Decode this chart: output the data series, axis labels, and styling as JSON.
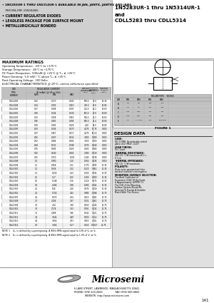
{
  "title_right_line1": "1N5283UR-1 thru 1N5314UR-1",
  "title_right_line2": "and",
  "title_right_line3": "CDLL5283 thru CDLL5314",
  "header_bullets": [
    "1N5283UR-1 THRU 1N5314UR-1 AVAILABLE IN JAN, JANTX, JANTXV AND JANS",
    "  PER MIL-PRF-19500/465",
    "CURRENT REGULATOR DIODES",
    "LEADLESS PACKAGE FOR SURFACE MOUNT",
    "METALLURGICALLY BONDED"
  ],
  "max_ratings_title": "MAXIMUM RATINGS",
  "max_ratings": [
    "Operating Temperature:  -65°C to +175°C",
    "Storage Temperature:  -65°C to +175°C",
    "DC Power Dissipation:  500mW @ +25°C @ T₂ₑ ≤ +25°C",
    "Power Derating:  5.0 mW / °C above T₂ₑ ≤ +25°C",
    "Peak Operating Voltage:  100 Volts"
  ],
  "elec_char_title": "ELECTRICAL CHARACTERISTICS @ 25°C, unless otherwise specified",
  "table_rows": [
    [
      "CDLL5283",
      "0.22",
      "0.173",
      "0.243",
      "579.0",
      "27.0",
      "13.36"
    ],
    [
      "CDLL5284",
      "0.24",
      "0.192",
      "0.263",
      "790.0",
      "27.0",
      "13.86"
    ],
    [
      "CDLL5285",
      "0.27",
      "0.208",
      "0.297",
      "702.0",
      "44.2",
      "14.60"
    ],
    [
      "CDLL5286",
      "0.30",
      "0.234",
      "0.330",
      "631.0",
      "23.9",
      "14.80"
    ],
    [
      "CDLL5287",
      "0.33",
      "0.258",
      "0.363",
      "574.0",
      "23.3",
      "14.60"
    ],
    [
      "CDLL5288",
      "0.36",
      "0.281",
      "0.396",
      "526.0",
      "21.4",
      "14.80"
    ],
    [
      "CDLL5289",
      "0.39",
      "0.305",
      "0.429",
      "4.10",
      "19.5",
      "14.80"
    ],
    [
      "CDLL5290",
      "0.43",
      "0.336",
      "0.473",
      "4.175",
      "17.75",
      "1.800"
    ],
    [
      "CDLL5291",
      "0.47",
      "0.367",
      "0.517",
      "4.175",
      "16.10",
      "1.800"
    ],
    [
      "CDLL5292",
      "0.56",
      "0.437",
      "0.616",
      "3.490",
      "0.780",
      "1.800"
    ],
    [
      "CDLL5293",
      "0.62",
      "0.484",
      "0.682",
      "3.150",
      "0.700",
      "1.800"
    ],
    [
      "CDLL5294",
      "0.68",
      "0.531",
      "0.748",
      "2.870",
      "0.640",
      "1.800"
    ],
    [
      "CDLL5295",
      "0.75",
      "0.585",
      "0.825",
      "2.600",
      "0.580",
      "1.800"
    ],
    [
      "CDLL5296",
      "0.82",
      "0.640",
      "0.902",
      "2.380",
      "0.530",
      "1.800"
    ],
    [
      "CDLL5297",
      "0.91",
      "0.710",
      "1.001",
      "2.140",
      "0.478",
      "1.800"
    ],
    [
      "CDLL5298",
      "1.0",
      "0.780",
      "1.10",
      "1.950",
      "0.435",
      "1.800"
    ],
    [
      "CDLL5299",
      "1.1",
      "0.858",
      "1.21",
      "1.770",
      "0.395",
      "11.35"
    ],
    [
      "CDLL5300",
      "1.2",
      "0.936",
      "1.32",
      "1.620",
      "0.362",
      "11.35"
    ],
    [
      "CDLL5301",
      "1.3",
      "1.014",
      "1.43",
      "1.500",
      "0.334",
      "11.35"
    ],
    [
      "CDLL5302",
      "1.5",
      "1.17",
      "1.65",
      "1.300",
      "0.290",
      "11.35"
    ],
    [
      "CDLL5303",
      "1.6",
      "1.248",
      "1.76",
      "1.219",
      "0.272",
      "11.35"
    ],
    [
      "CDLL5304",
      "1.8",
      "1.404",
      "1.98",
      "1.083",
      "0.242",
      "11.35"
    ],
    [
      "CDLL5305",
      "2.0",
      "1.56",
      "2.20",
      "0.975",
      "0.218",
      "11.35"
    ],
    [
      "CDLL5306",
      "2.2",
      "1.716",
      "2.42",
      "0.886",
      "0.198",
      "11.75"
    ],
    [
      "CDLL5307",
      "2.4",
      "1.872",
      "2.64",
      "0.813",
      "0.181",
      "11.75"
    ],
    [
      "CDLL5308",
      "2.7",
      "2.106",
      "2.97",
      "0.722",
      "0.161",
      "11.75"
    ],
    [
      "CDLL5309",
      "3.0",
      "2.34",
      "3.30",
      "0.650",
      "0.145",
      "11.75"
    ],
    [
      "CDLL5310",
      "3.3",
      "2.574",
      "3.63",
      "0.591",
      "0.132",
      "11.75"
    ],
    [
      "CDLL5311",
      "3.6",
      "2.808",
      "3.96",
      "0.542",
      "0.121",
      "11.75"
    ],
    [
      "CDLL5312",
      "3.9",
      "3.042",
      "4.29",
      "0.500",
      "0.112",
      "11.75"
    ],
    [
      "CDLL5313",
      "4.3",
      "3.354",
      "4.73",
      "0.453",
      "0.101",
      "11.75"
    ],
    [
      "CDLL5314",
      "4.7",
      "3.666",
      "5.17",
      "0.415",
      "0.0927",
      "21.75"
    ]
  ],
  "note1": "NOTE 1    Z₂₁ is defined by superimposing. A 90Hz RMS signal equal to 10% of V₂ on V₂",
  "note2": "NOTE 2    Z₂₂ is defined by superimposing. A 90Hz RMS signal equal to 1.0% of V₂ on V₂",
  "figure_title": "FIGURE 1",
  "design_data_title": "DESIGN DATA",
  "design_data": [
    [
      "CASE: ",
      "DO-213AB, Hermetically sealed glass case (MELF, LL41)"
    ],
    [
      "LEAD FINISH: ",
      "Tin / Lead"
    ],
    [
      "THERMAL RESISTANCE: ",
      "(θJC)\n50 °C/W maximum all L = 0 inch"
    ],
    [
      "THERMAL IMPEDANCE: ",
      "(θJC) 25\n°C/W maximum"
    ],
    [
      "POLARITY: ",
      "Diode to be operated with the banded (cathode) end negative."
    ],
    [
      "MOUNTING SURFACE SELECTION: ",
      "The Axial Coefficient of Expansion (COE) Of the Diode Is Approximately (4/PPM/°C). The COE of the Mounting Surface System Should Be Selected To Provide A Suitable Match With This Device."
    ]
  ],
  "dim_data": [
    [
      "A",
      "3.5",
      "3.8",
      ".138",
      ".150"
    ],
    [
      "B",
      "1.3",
      "1.9",
      ".051",
      ".075"
    ],
    [
      "C",
      "0.36",
      "0.56",
      ".014",
      ".022"
    ],
    [
      "D",
      "5.08",
      "5.84",
      ".200",
      ".230"
    ],
    [
      "E",
      "1.4",
      "1.5 MIN",
      ".055",
      ".059 MIN"
    ]
  ],
  "company": "Microsemi",
  "footer_line1": "6 LAKE STREET, LAWRENCE, MASSACHUSETTS 01841",
  "footer_line2": "PHONE (978) 620-2600                FAX (978) 689-0803",
  "footer_line3": "WEBSITE: http://www.microsemi.com",
  "page_num": "141",
  "bg_color_header": "#d0d0d0",
  "bg_color_right": "#e0e0e0",
  "table_header_bg": "#c0c0c0"
}
